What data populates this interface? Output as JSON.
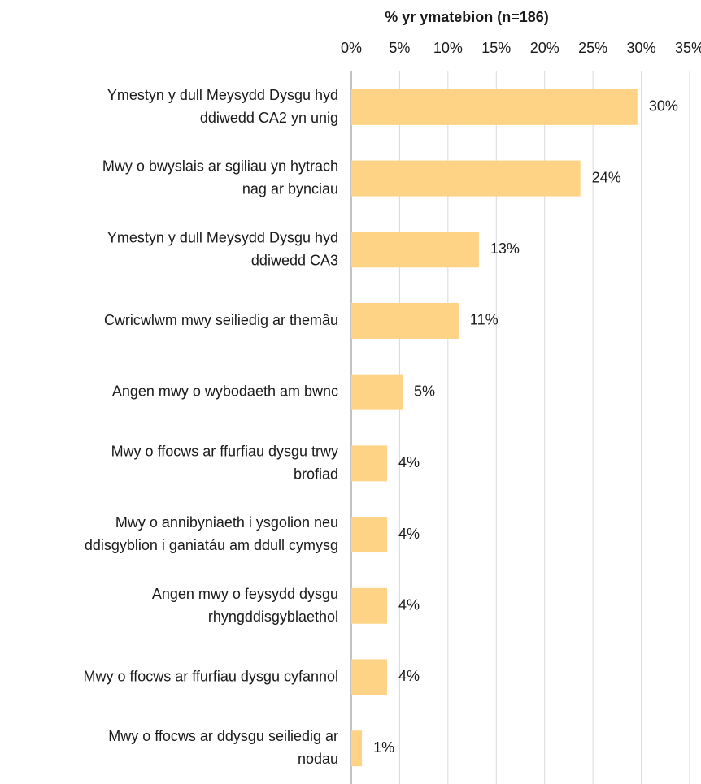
{
  "chart_data": {
    "type": "hbar",
    "title": "% yr ymatebion (n=186)",
    "categories": [
      "Ymestyn y dull Meysydd Dysgu hyd\nddiwedd CA2 yn unig",
      "Mwy o bwyslais ar sgiliau yn hytrach\nnag ar bynciau",
      "Ymestyn y dull Meysydd Dysgu hyd\nddiwedd CA3",
      "Cwricwlwm mwy seiliedig ar themâu",
      "Angen mwy o wybodaeth am bwnc",
      "Mwy o ffocws ar ffurfiau dysgu trwy\nbrofiad",
      "Mwy o annibyniaeth i ysgolion neu\nddisgyblion i ganiatáu am ddull cymysg",
      "Angen mwy o feysydd dysgu\nrhyngddisgyblaethol",
      "Mwy o ffocws ar ffurfiau dysgu cyfannol",
      "Mwy o ffocws ar ddysgu seiliedig ar\nnodau"
    ],
    "values": [
      29.6,
      23.7,
      13.2,
      11.1,
      5.3,
      3.7,
      3.7,
      3.7,
      3.7,
      1.1
    ],
    "value_labels": [
      "30%",
      "24%",
      "13%",
      "11%",
      "5%",
      "4%",
      "4%",
      "4%",
      "4%",
      "1%"
    ],
    "color": "#ffd386",
    "xlim": [
      0,
      35
    ],
    "xticks": [
      {
        "value": 0,
        "label": "0%"
      },
      {
        "value": 5,
        "label": "5%"
      },
      {
        "value": 10,
        "label": "10%"
      },
      {
        "value": 15,
        "label": "15%"
      },
      {
        "value": 20,
        "label": "20%"
      },
      {
        "value": 25,
        "label": "25%"
      },
      {
        "value": 30,
        "label": "30%"
      },
      {
        "value": 35,
        "label": "35%"
      }
    ],
    "grid": true
  }
}
